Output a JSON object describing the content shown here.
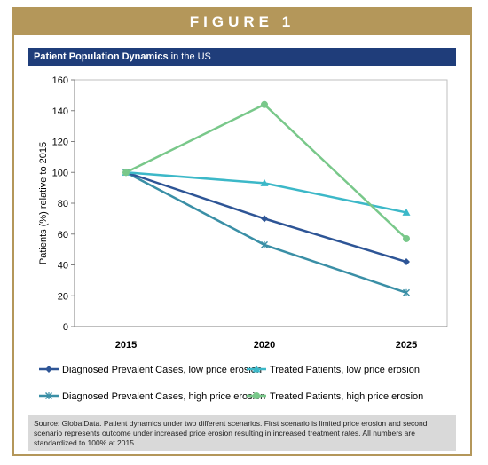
{
  "figure_label": "FIGURE 1",
  "title_bold": "Patient Population Dynamics",
  "title_rest": " in the US",
  "source": "Source: GlobalData. Patient dynamics under two different scenarios. First scenario is limited price erosion and second scenario represents outcome under increased price erosion resulting in increased treatment rates. All numbers are standardized to 100% at 2015.",
  "colors": {
    "banner": "#b4975a",
    "title_bar": "#1f3d7a",
    "source_bg": "#d9d9d9"
  },
  "chart_data": {
    "type": "line",
    "x": [
      "2015",
      "2020",
      "2025"
    ],
    "ylabel": "Patients (%) relative to 2015",
    "ylim": [
      0,
      160
    ],
    "yticks": [
      "0",
      "20",
      "40",
      "60",
      "80",
      "100",
      "120",
      "140",
      "160"
    ],
    "legend_position": "bottom",
    "series": [
      {
        "name": "Diagnosed Prevalent Cases, low price erosion",
        "values": [
          100,
          70,
          42
        ],
        "color": "#2e5596",
        "marker": "diamond"
      },
      {
        "name": "Treated Patients, low price erosion",
        "values": [
          100,
          93,
          74
        ],
        "color": "#3cb8c8",
        "marker": "triangle"
      },
      {
        "name": "Diagnosed Prevalent Cases, high price erosion",
        "values": [
          100,
          53,
          22
        ],
        "color": "#3a8fa6",
        "marker": "star"
      },
      {
        "name": "Treated Patients, high price erosion",
        "values": [
          100,
          144,
          57
        ],
        "color": "#79c88a",
        "marker": "circle"
      }
    ]
  }
}
